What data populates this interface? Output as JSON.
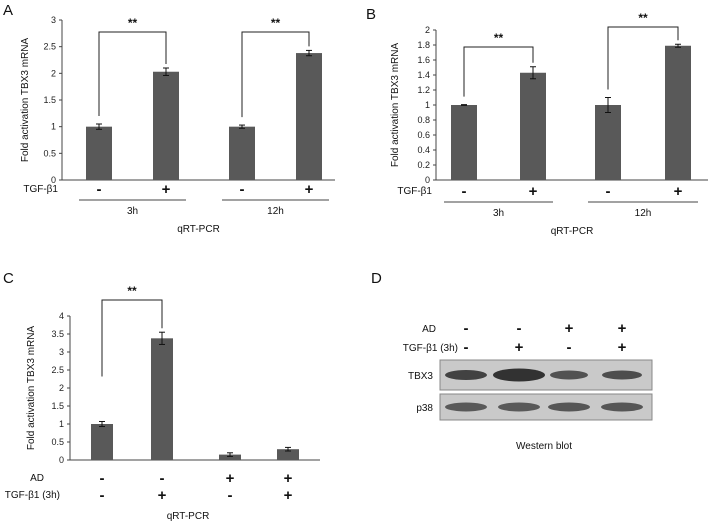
{
  "chart_data": [
    {
      "panel": "A",
      "type": "bar",
      "categories": [
        "3h -",
        "3h +",
        "12h -",
        "12h +"
      ],
      "values": [
        1.0,
        2.03,
        1.0,
        2.38
      ],
      "errors": [
        0.05,
        0.07,
        0.03,
        0.05
      ],
      "ylabel": "Fold activation TBX3 mRNA",
      "xlabel": "qRT-PCR",
      "ylim": [
        0,
        3
      ],
      "yticks": [
        "0",
        "0.5",
        "1",
        "1.5",
        "2",
        "2.5",
        "3"
      ],
      "row_label": "TGF-β1",
      "signs": [
        "-",
        "+",
        "-",
        "+"
      ],
      "groups": [
        "3h",
        "12h"
      ],
      "significance": [
        "**",
        "**"
      ]
    },
    {
      "panel": "B",
      "type": "bar",
      "categories": [
        "3h -",
        "3h +",
        "12h -",
        "12h +"
      ],
      "values": [
        1.0,
        1.43,
        1.0,
        1.79
      ],
      "errors": [
        0.005,
        0.08,
        0.1,
        0.02
      ],
      "ylabel": "Fold activation TBX3 mRNA",
      "xlabel": "qRT-PCR",
      "ylim": [
        0,
        2
      ],
      "yticks": [
        "0",
        "0.2",
        "0.4",
        "0.6",
        "0.8",
        "1",
        "1.2",
        "1.4",
        "1.6",
        "1.8",
        "2"
      ],
      "row_label": "TGF-β1",
      "signs": [
        "-",
        "+",
        "-",
        "+"
      ],
      "groups": [
        "3h",
        "12h"
      ],
      "significance": [
        "**",
        "**"
      ]
    },
    {
      "panel": "C",
      "type": "bar",
      "categories": [
        "- / -",
        "- / +",
        "+ / -",
        "+ / +"
      ],
      "values": [
        1.0,
        3.38,
        0.15,
        0.3
      ],
      "errors": [
        0.07,
        0.17,
        0.05,
        0.05
      ],
      "ylabel": "Fold activation TBX3 mRNA",
      "xlabel": "qRT-PCR",
      "ylim": [
        0,
        4
      ],
      "yticks": [
        "0",
        "0.5",
        "1",
        "1.5",
        "2",
        "2.5",
        "3",
        "3.5",
        "4"
      ],
      "row_labels": [
        "AD",
        "TGF-β1 (3h)"
      ],
      "ad_signs": [
        "-",
        "-",
        "+",
        "+"
      ],
      "tgf_signs": [
        "-",
        "+",
        "-",
        "+"
      ],
      "significance": [
        "**"
      ]
    }
  ],
  "blot": {
    "panel": "D",
    "row_labels": [
      "AD",
      "TGF-β1 (3h)"
    ],
    "ad_signs": [
      "-",
      "-",
      "+",
      "+"
    ],
    "tgf_signs": [
      "-",
      "+",
      "-",
      "+"
    ],
    "bands": [
      "TBX3",
      "p38"
    ],
    "caption": "Western blot"
  }
}
